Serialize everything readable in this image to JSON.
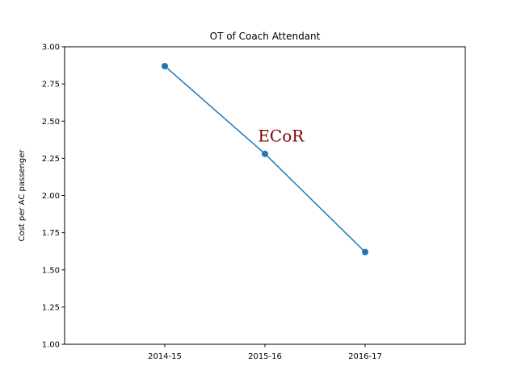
{
  "chart_data": {
    "type": "line",
    "title": "OT of Coach Attendant",
    "xlabel": "",
    "ylabel": "Cost per AC passenger",
    "categories": [
      "2014-15",
      "2015-16",
      "2016-17"
    ],
    "series": [
      {
        "values": [
          2.87,
          2.28,
          1.62
        ]
      }
    ],
    "ylim": [
      1.0,
      3.0
    ],
    "yticks": [
      "1.00",
      "1.25",
      "1.50",
      "1.75",
      "2.00",
      "2.25",
      "2.50",
      "2.75",
      "3.00"
    ],
    "grid": false,
    "line_color": "#1f77b4",
    "annotation": {
      "text": "ECoR",
      "color": "#800000",
      "x_category_position": 2.16,
      "y_value": 2.4
    }
  }
}
